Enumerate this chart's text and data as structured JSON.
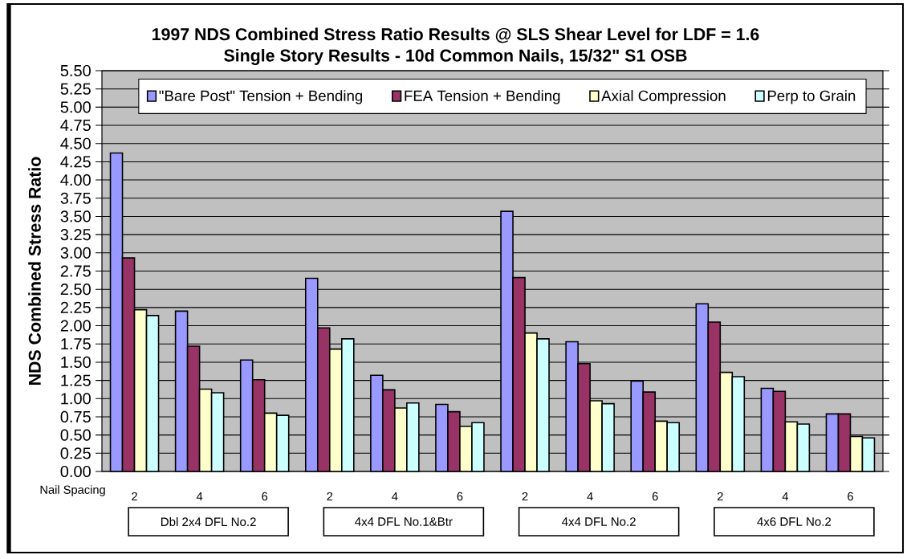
{
  "chart_data": {
    "type": "bar",
    "title": "1997 NDS Combined Stress Ratio Results @ SLS Shear Level for LDF = 1.6",
    "subtitle": "Single Story Results - 10d Common Nails, 15/32\" S1 OSB",
    "xlabel": "Nail Spacing",
    "ylabel": "NDS Combined Stress Ratio",
    "categories": [
      "2",
      "4",
      "6",
      "2",
      "4",
      "6",
      "2",
      "4",
      "6",
      "2",
      "4",
      "6"
    ],
    "annotations": [
      "Dbl 2x4 DFL No.2",
      "4x4 DFL No.1&Btr",
      "4x4 DFL No.2",
      "4x6 DFL No.2"
    ],
    "series": [
      {
        "name": "\"Bare Post\" Tension + Bending",
        "color": "#9999ff",
        "values": [
          4.37,
          2.2,
          1.53,
          2.65,
          1.32,
          0.92,
          3.57,
          1.78,
          1.24,
          2.3,
          1.14,
          0.79
        ]
      },
      {
        "name": "FEA Tension + Bending",
        "color": "#993366",
        "values": [
          2.93,
          1.72,
          1.26,
          1.97,
          1.12,
          0.82,
          2.66,
          1.48,
          1.09,
          2.05,
          1.1,
          0.79
        ]
      },
      {
        "name": "Axial Compression",
        "color": "#ffffcc",
        "values": [
          2.22,
          1.13,
          0.8,
          1.68,
          0.87,
          0.62,
          1.9,
          0.97,
          0.69,
          1.36,
          0.68,
          0.48
        ]
      },
      {
        "name": "Perp to Grain",
        "color": "#ccffff",
        "values": [
          2.14,
          1.08,
          0.77,
          1.82,
          0.94,
          0.67,
          1.82,
          0.93,
          0.67,
          1.3,
          0.65,
          0.46
        ]
      }
    ],
    "ylim": [
      0,
      5.5
    ],
    "yticks": [
      {
        "value": 0,
        "label": "0.00"
      },
      {
        "value": 0.25,
        "label": "0.25"
      },
      {
        "value": 0.5,
        "label": "0.50"
      },
      {
        "value": 0.75,
        "label": "0.75"
      },
      {
        "value": 1,
        "label": "1.00"
      },
      {
        "value": 1.25,
        "label": "1.25"
      },
      {
        "value": 1.5,
        "label": "1.50"
      },
      {
        "value": 1.75,
        "label": "1.75"
      },
      {
        "value": 2,
        "label": "2.00"
      },
      {
        "value": 2.25,
        "label": "2.25"
      },
      {
        "value": 2.5,
        "label": "2.50"
      },
      {
        "value": 2.75,
        "label": "2.75"
      },
      {
        "value": 3,
        "label": "3.00"
      },
      {
        "value": 3.25,
        "label": "3.25"
      },
      {
        "value": 3.5,
        "label": "3.50"
      },
      {
        "value": 3.75,
        "label": "3.75"
      },
      {
        "value": 4,
        "label": "4.00"
      },
      {
        "value": 4.25,
        "label": "4.25"
      },
      {
        "value": 4.5,
        "label": "4.50"
      },
      {
        "value": 4.75,
        "label": "4.75"
      },
      {
        "value": 5,
        "label": "5.00"
      },
      {
        "value": 5.25,
        "label": "5.25"
      },
      {
        "value": 5.5,
        "label": "5.50"
      }
    ],
    "grid": "y",
    "legend": "top"
  }
}
